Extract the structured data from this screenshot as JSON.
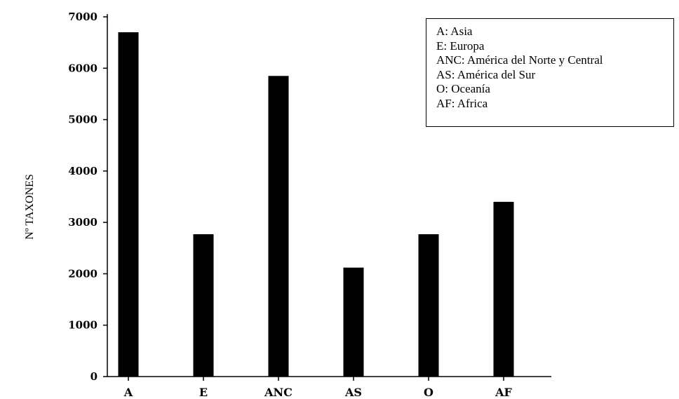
{
  "chart_data": {
    "type": "bar",
    "categories": [
      "A",
      "E",
      "ANC",
      "AS",
      "O",
      "AF"
    ],
    "values": [
      6700,
      2770,
      5850,
      2120,
      2770,
      3400
    ],
    "ylabel": "Nº TAXONES",
    "xlabel": "",
    "ylim": [
      0,
      7000
    ],
    "yticks": [
      0,
      1000,
      2000,
      3000,
      4000,
      5000,
      6000,
      7000
    ],
    "grid": false,
    "legend_position": "top-right",
    "legend": [
      "A: Asia",
      "E: Europa",
      "ANC: América del Norte y Central",
      "AS: América del Sur",
      "O: Oceanía",
      "AF: Africa"
    ],
    "bar_color": "#000000"
  }
}
